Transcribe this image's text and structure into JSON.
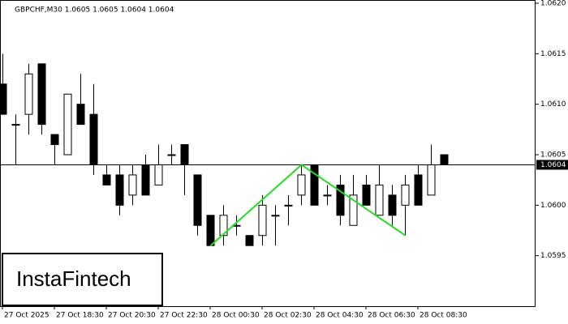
{
  "chart_data": {
    "type": "candlestick",
    "title": "GBPCHF,M30  1.0605 1.0605 1.0604 1.0604",
    "logo": "InstaFintech",
    "categories": [
      "27 Oct 2025",
      null,
      null,
      null,
      "27 Oct 18:30",
      null,
      null,
      null,
      "27 Oct 20:30",
      null,
      null,
      null,
      "27 Oct 22:30",
      null,
      null,
      null,
      "28 Oct 00:30",
      null,
      null,
      null,
      "28 Oct 02:30",
      null,
      null,
      null,
      "28 Oct 04:30",
      null,
      null,
      null,
      "28 Oct 06:30",
      null,
      null,
      null,
      "28 Oct 08:30",
      null,
      null
    ],
    "open": [
      1.0612,
      1.0608,
      1.0609,
      1.0614,
      1.0607,
      1.0605,
      1.061,
      1.0609,
      1.0603,
      1.0603,
      1.0601,
      1.0604,
      1.0602,
      1.0605,
      1.0606,
      1.0603,
      1.0599,
      1.0597,
      1.0598,
      1.0597,
      1.0597,
      1.0599,
      1.06,
      1.0601,
      1.0604,
      1.0601,
      1.0602,
      1.0598,
      1.0602,
      1.0599,
      1.0601,
      1.06,
      1.0603,
      1.0601,
      1.0605
    ],
    "high": [
      1.0615,
      1.0609,
      1.0614,
      1.0614,
      1.0607,
      1.0611,
      1.0613,
      1.0612,
      1.0604,
      1.0604,
      1.0604,
      1.0605,
      1.0606,
      1.0606,
      1.0606,
      1.0603,
      1.0599,
      1.06,
      1.0599,
      1.0597,
      1.0601,
      1.06,
      1.0601,
      1.0604,
      1.0604,
      1.0602,
      1.0603,
      1.0603,
      1.0603,
      1.0604,
      1.0602,
      1.0603,
      1.0604,
      1.0606,
      1.0605
    ],
    "low": [
      1.0609,
      1.0604,
      1.0607,
      1.0607,
      1.0604,
      1.0605,
      1.0608,
      1.0603,
      1.0602,
      1.0599,
      1.06,
      1.0601,
      1.0602,
      1.0604,
      1.0601,
      1.0597,
      1.0596,
      1.0596,
      1.0597,
      1.0596,
      1.0596,
      1.0596,
      1.0598,
      1.06,
      1.06,
      1.06,
      1.0598,
      1.0598,
      1.06,
      1.0599,
      1.0598,
      1.0597,
      1.06,
      1.0601,
      1.0604
    ],
    "close": [
      1.0609,
      1.0608,
      1.0613,
      1.0608,
      1.0606,
      1.0611,
      1.0608,
      1.0604,
      1.0602,
      1.06,
      1.0603,
      1.0601,
      1.0604,
      1.0605,
      1.0604,
      1.0598,
      1.0596,
      1.0599,
      1.0598,
      1.0596,
      1.06,
      1.0599,
      1.06,
      1.0603,
      1.06,
      1.0601,
      1.0599,
      1.0601,
      1.06,
      1.0602,
      1.0599,
      1.0602,
      1.06,
      1.0604,
      1.0604
    ],
    "up_color": "#ffffff",
    "down_color": "#000000",
    "ylim": [
      1.059,
      1.062
    ],
    "yticks": [
      1.0595,
      {
        "value": 1.06,
        "label": "1.0600"
      },
      1.0605,
      {
        "value": 1.061,
        "label": "1.0610"
      },
      1.0615,
      {
        "value": 1.062,
        "label": "1.0620"
      }
    ],
    "current_price": 1.0604,
    "pattern": {
      "color": "#22dd22",
      "x": [
        16,
        23,
        31
      ],
      "y": [
        1.0596,
        1.0604,
        1.0597
      ]
    }
  }
}
